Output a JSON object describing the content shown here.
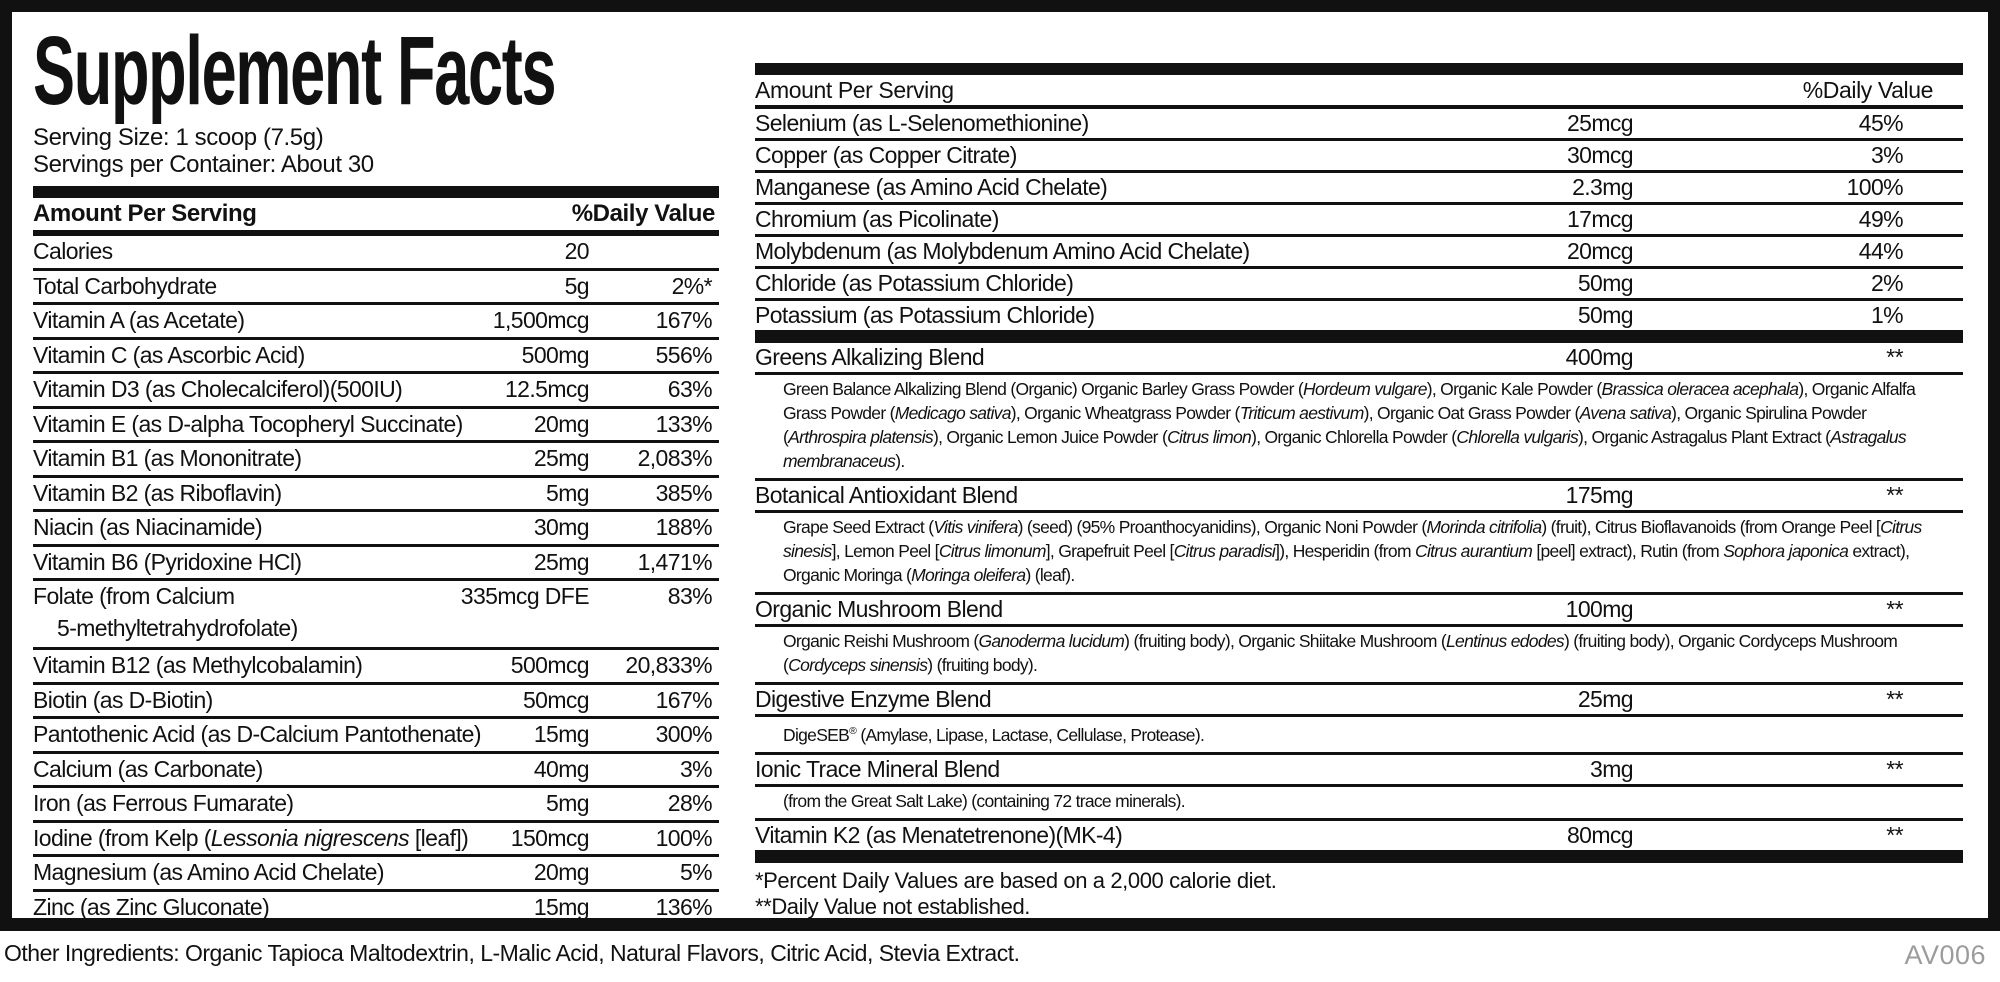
{
  "colors": {
    "ink": "#111111",
    "paper": "#ffffff",
    "code_gray": "#9c9c9c"
  },
  "title": "Supplement Facts",
  "serving": {
    "size": "Serving Size: 1 scoop (7.5g)",
    "per_container": "Servings per Container: About 30"
  },
  "left_table": {
    "header": {
      "amount": "Amount Per Serving",
      "dv": "%Daily Value"
    },
    "rows": [
      {
        "name": "Calories",
        "amount": "20",
        "dv": ""
      },
      {
        "name": "Total Carbohydrate",
        "amount": "5g",
        "dv": "2%*"
      },
      {
        "name": "Vitamin A (as Acetate)",
        "amount": "1,500mcg",
        "dv": "167%"
      },
      {
        "name": "Vitamin C (as Ascorbic Acid)",
        "amount": "500mg",
        "dv": "556%"
      },
      {
        "name": "Vitamin D3 (as Cholecalciferol)(500IU)",
        "amount": "12.5mcg",
        "dv": "63%"
      },
      {
        "name": "Vitamin E (as D-alpha Tocopheryl Succinate)",
        "amount": "20mg",
        "dv": "133%"
      },
      {
        "name": "Vitamin B1 (as Mononitrate)",
        "amount": "25mg",
        "dv": "2,083%"
      },
      {
        "name": "Vitamin B2 (as Riboflavin)",
        "amount": "5mg",
        "dv": "385%"
      },
      {
        "name": "Niacin (as Niacinamide)",
        "amount": "30mg",
        "dv": "188%"
      },
      {
        "name": "Vitamin B6 (Pyridoxine HCl)",
        "amount": "25mg",
        "dv": "1,471%"
      },
      {
        "name": [
          {
            "t": "Folate (from Calcium"
          },
          {
            "br": true
          },
          {
            "t": "5-methyltetrahydrofolate)",
            "ind": true
          }
        ],
        "amount": "335mcg DFE",
        "dv": "83%",
        "tall": true
      },
      {
        "name": "Vitamin B12 (as Methylcobalamin)",
        "amount": "500mcg",
        "dv": "20,833%"
      },
      {
        "name": "Biotin (as D-Biotin)",
        "amount": "50mcg",
        "dv": "167%"
      },
      {
        "name": "Pantothenic Acid (as D-Calcium Pantothenate)",
        "amount": "15mg",
        "dv": "300%"
      },
      {
        "name": "Calcium (as Carbonate)",
        "amount": "40mg",
        "dv": "3%"
      },
      {
        "name": "Iron (as Ferrous Fumarate)",
        "amount": "5mg",
        "dv": "28%"
      },
      {
        "name": [
          {
            "t": "Iodine (from Kelp ("
          },
          {
            "t": "Lessonia nigrescens",
            "i": true
          },
          {
            "t": " [leaf])"
          }
        ],
        "amount": "150mcg",
        "dv": "100%"
      },
      {
        "name": "Magnesium (as Amino Acid Chelate)",
        "amount": "20mg",
        "dv": "5%"
      },
      {
        "name": "Zinc (as Zinc Gluconate)",
        "amount": "15mg",
        "dv": "136%"
      }
    ]
  },
  "right_table": {
    "header": {
      "amount": "Amount Per Serving",
      "dv": "%Daily Value"
    },
    "rows": [
      {
        "name": "Selenium (as L-Selenomethionine)",
        "amount": "25mcg",
        "dv": "45%"
      },
      {
        "name": "Copper (as Copper Citrate)",
        "amount": "30mcg",
        "dv": "3%"
      },
      {
        "name": "Manganese (as Amino Acid Chelate)",
        "amount": "2.3mg",
        "dv": "100%"
      },
      {
        "name": "Chromium (as Picolinate)",
        "amount": "17mcg",
        "dv": "49%"
      },
      {
        "name": "Molybdenum (as Molybdenum Amino Acid Chelate)",
        "amount": "20mcg",
        "dv": "44%"
      },
      {
        "name": "Chloride (as Potassium Chloride)",
        "amount": "50mg",
        "dv": "2%"
      },
      {
        "name": "Potassium (as Potassium Chloride)",
        "amount": "50mg",
        "dv": "1%"
      }
    ]
  },
  "blends": [
    {
      "name": "Greens Alkalizing Blend",
      "amount": "400mg",
      "dv": "**",
      "desc": [
        {
          "t": "Green Balance Alkalizing Blend (Organic) Organic Barley Grass Powder ("
        },
        {
          "t": "Hordeum vulgare",
          "i": true
        },
        {
          "t": "), Organic Kale Powder ("
        },
        {
          "t": "Brassica oleracea acephala",
          "i": true
        },
        {
          "t": "), Organic Alfalfa Grass Powder ("
        },
        {
          "t": "Medicago sativa",
          "i": true
        },
        {
          "t": "), Organic Wheatgrass Powder ("
        },
        {
          "t": "Triticum aestivum",
          "i": true
        },
        {
          "t": "), Organic Oat Grass Powder ("
        },
        {
          "t": "Avena sativa",
          "i": true
        },
        {
          "t": "), Organic Spirulina Powder ("
        },
        {
          "t": "Arthrospira platensis",
          "i": true
        },
        {
          "t": "), Organic Lemon Juice Powder ("
        },
        {
          "t": "Citrus limon",
          "i": true
        },
        {
          "t": "), Organic Chlorella Powder ("
        },
        {
          "t": "Chlorella vulgaris",
          "i": true
        },
        {
          "t": "), Organic Astragalus Plant Extract ("
        },
        {
          "t": "Astragalus membranaceus",
          "i": true
        },
        {
          "t": ")."
        }
      ]
    },
    {
      "name": "Botanical Antioxidant Blend",
      "amount": "175mg",
      "dv": "**",
      "desc": [
        {
          "t": "Grape Seed Extract ("
        },
        {
          "t": "Vitis vinifera",
          "i": true
        },
        {
          "t": ") (seed) (95% Proanthocyanidins), Organic Noni Powder ("
        },
        {
          "t": "Morinda citrifolia",
          "i": true
        },
        {
          "t": ") (fruit), Citrus Bioflavanoids (from Orange Peel ["
        },
        {
          "t": "Citrus sinesis",
          "i": true
        },
        {
          "t": "], Lemon Peel ["
        },
        {
          "t": "Citrus limonum",
          "i": true
        },
        {
          "t": "], Grapefruit Peel ["
        },
        {
          "t": "Citrus paradisi",
          "i": true
        },
        {
          "t": "]), Hesperidin (from "
        },
        {
          "t": "Citrus aurantium",
          "i": true
        },
        {
          "t": " [peel] extract), Rutin (from "
        },
        {
          "t": "Sophora japonica",
          "i": true
        },
        {
          "t": " extract), Organic Moringa ("
        },
        {
          "t": "Moringa oleifera",
          "i": true
        },
        {
          "t": ") (leaf)."
        }
      ]
    },
    {
      "name": "Organic Mushroom Blend",
      "amount": "100mg",
      "dv": "**",
      "desc": [
        {
          "t": "Organic Reishi Mushroom ("
        },
        {
          "t": "Ganoderma lucidum",
          "i": true
        },
        {
          "t": ") (fruiting body), Organic Shiitake Mushroom ("
        },
        {
          "t": "Lentinus edodes",
          "i": true
        },
        {
          "t": ") (fruiting body), Organic Cordyceps Mushroom ("
        },
        {
          "t": "Cordyceps sinensis",
          "i": true
        },
        {
          "t": ") (fruiting body)."
        }
      ]
    },
    {
      "name": "Digestive Enzyme Blend",
      "amount": "25mg",
      "dv": "**",
      "desc": [
        {
          "t": "DigeSEB"
        },
        {
          "t": "®",
          "s": true
        },
        {
          "t": " (Amylase, Lipase, Lactase, Cellulase, Protease)."
        }
      ]
    },
    {
      "name": "Ionic Trace Mineral Blend",
      "amount": "3mg",
      "dv": "**",
      "desc": [
        {
          "t": "(from the Great Salt Lake) (containing 72 trace minerals)."
        }
      ]
    },
    {
      "name": "Vitamin K2 (as Menatetrenone)(MK-4)",
      "amount": "80mcg",
      "dv": "**",
      "desc": null
    }
  ],
  "footnotes": [
    "*Percent Daily Values are based on a 2,000 calorie diet.",
    "**Daily Value not established."
  ],
  "other_ingredients": "Other Ingredients: Organic Tapioca Maltodextrin, L-Malic Acid, Natural Flavors, Citric Acid, Stevia Extract.",
  "meta": {
    "code": "AV006"
  }
}
